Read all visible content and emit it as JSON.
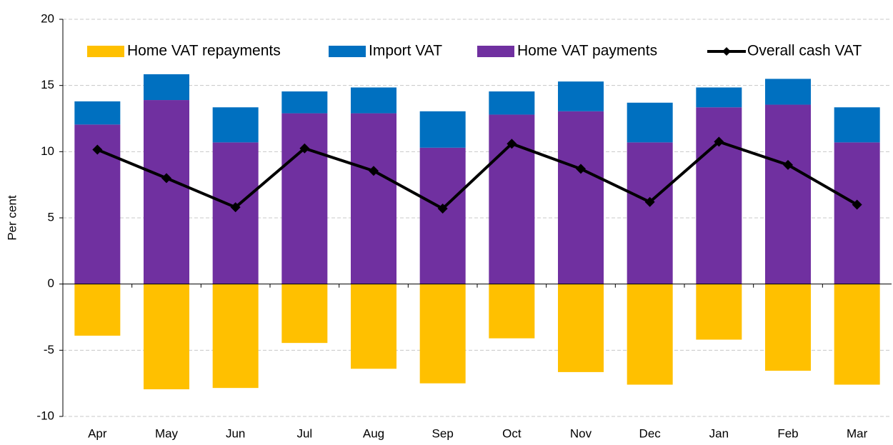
{
  "chart_data": {
    "type": "bar",
    "y_label": "Per cent",
    "categories": [
      "Apr",
      "May",
      "Jun",
      "Jul",
      "Aug",
      "Sep",
      "Oct",
      "Nov",
      "Dec",
      "Jan",
      "Feb",
      "Mar"
    ],
    "series": [
      {
        "name": "Home VAT repayments",
        "type": "bar",
        "color": "#ffc000",
        "values": [
          -3.9,
          -7.95,
          -7.85,
          -4.45,
          -6.4,
          -7.5,
          -4.1,
          -6.65,
          -7.6,
          -4.2,
          -6.55,
          -7.6
        ]
      },
      {
        "name": "Import VAT",
        "type": "bar",
        "color": "#0070c0",
        "values": [
          1.75,
          1.95,
          2.65,
          1.65,
          1.95,
          2.75,
          1.75,
          2.25,
          3.0,
          1.5,
          1.95,
          2.65
        ]
      },
      {
        "name": "Home VAT payments",
        "type": "bar",
        "color": "#7030a0",
        "values": [
          12.05,
          13.9,
          10.7,
          12.9,
          12.9,
          10.3,
          12.8,
          13.05,
          10.7,
          13.35,
          13.55,
          10.7
        ]
      },
      {
        "name": "Overall cash VAT",
        "type": "line",
        "color": "#000000",
        "values": [
          10.15,
          8.0,
          5.8,
          10.25,
          8.55,
          5.7,
          10.6,
          8.7,
          6.2,
          10.75,
          9.0,
          6.0
        ]
      }
    ],
    "ylim": [
      -10,
      20
    ],
    "yticks": [
      -10,
      -5,
      0,
      5,
      10,
      15,
      20
    ],
    "grid": true,
    "legend": "top"
  }
}
